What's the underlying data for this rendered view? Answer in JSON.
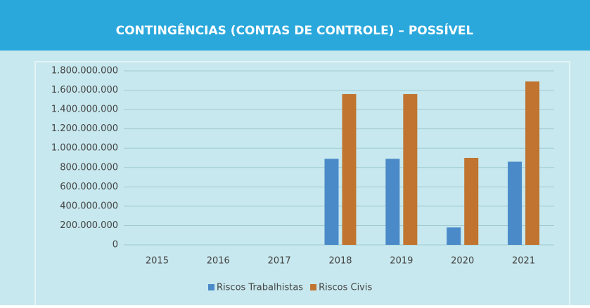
{
  "chart_data": {
    "type": "bar",
    "title": "CONTINGÊNCIAS (CONTAS DE CONTROLE) – POSSÍVEL",
    "categories": [
      "2015",
      "2016",
      "2017",
      "2018",
      "2019",
      "2020",
      "2021"
    ],
    "series": [
      {
        "name": "Riscos Trabalhistas",
        "color": "#4a8ac8",
        "values": [
          0,
          0,
          0,
          890000000,
          890000000,
          180000000,
          860000000
        ]
      },
      {
        "name": "Riscos Civis",
        "color": "#c0742f",
        "values": [
          0,
          0,
          0,
          1560000000,
          1560000000,
          900000000,
          1690000000
        ]
      }
    ],
    "ylim": [
      0,
      1800000000
    ],
    "yticks": [
      0,
      {
        "value": 200000000,
        "label": "200.000.000"
      },
      {
        "value": 400000000,
        "label": "400.000.000"
      },
      {
        "value": 600000000,
        "label": "600.000.000"
      },
      {
        "value": 800000000,
        "label": "800.000.000"
      },
      {
        "value": 1000000000,
        "label": "1.000.000.000"
      },
      {
        "value": 1200000000,
        "label": "1.200.000.000"
      },
      {
        "value": 1400000000,
        "label": "1.400.000.000"
      },
      {
        "value": 1600000000,
        "label": "1.600.000.000"
      },
      {
        "value": 1800000000,
        "label": "1.800.000.000"
      }
    ],
    "grid": true,
    "legend": "bottom"
  }
}
